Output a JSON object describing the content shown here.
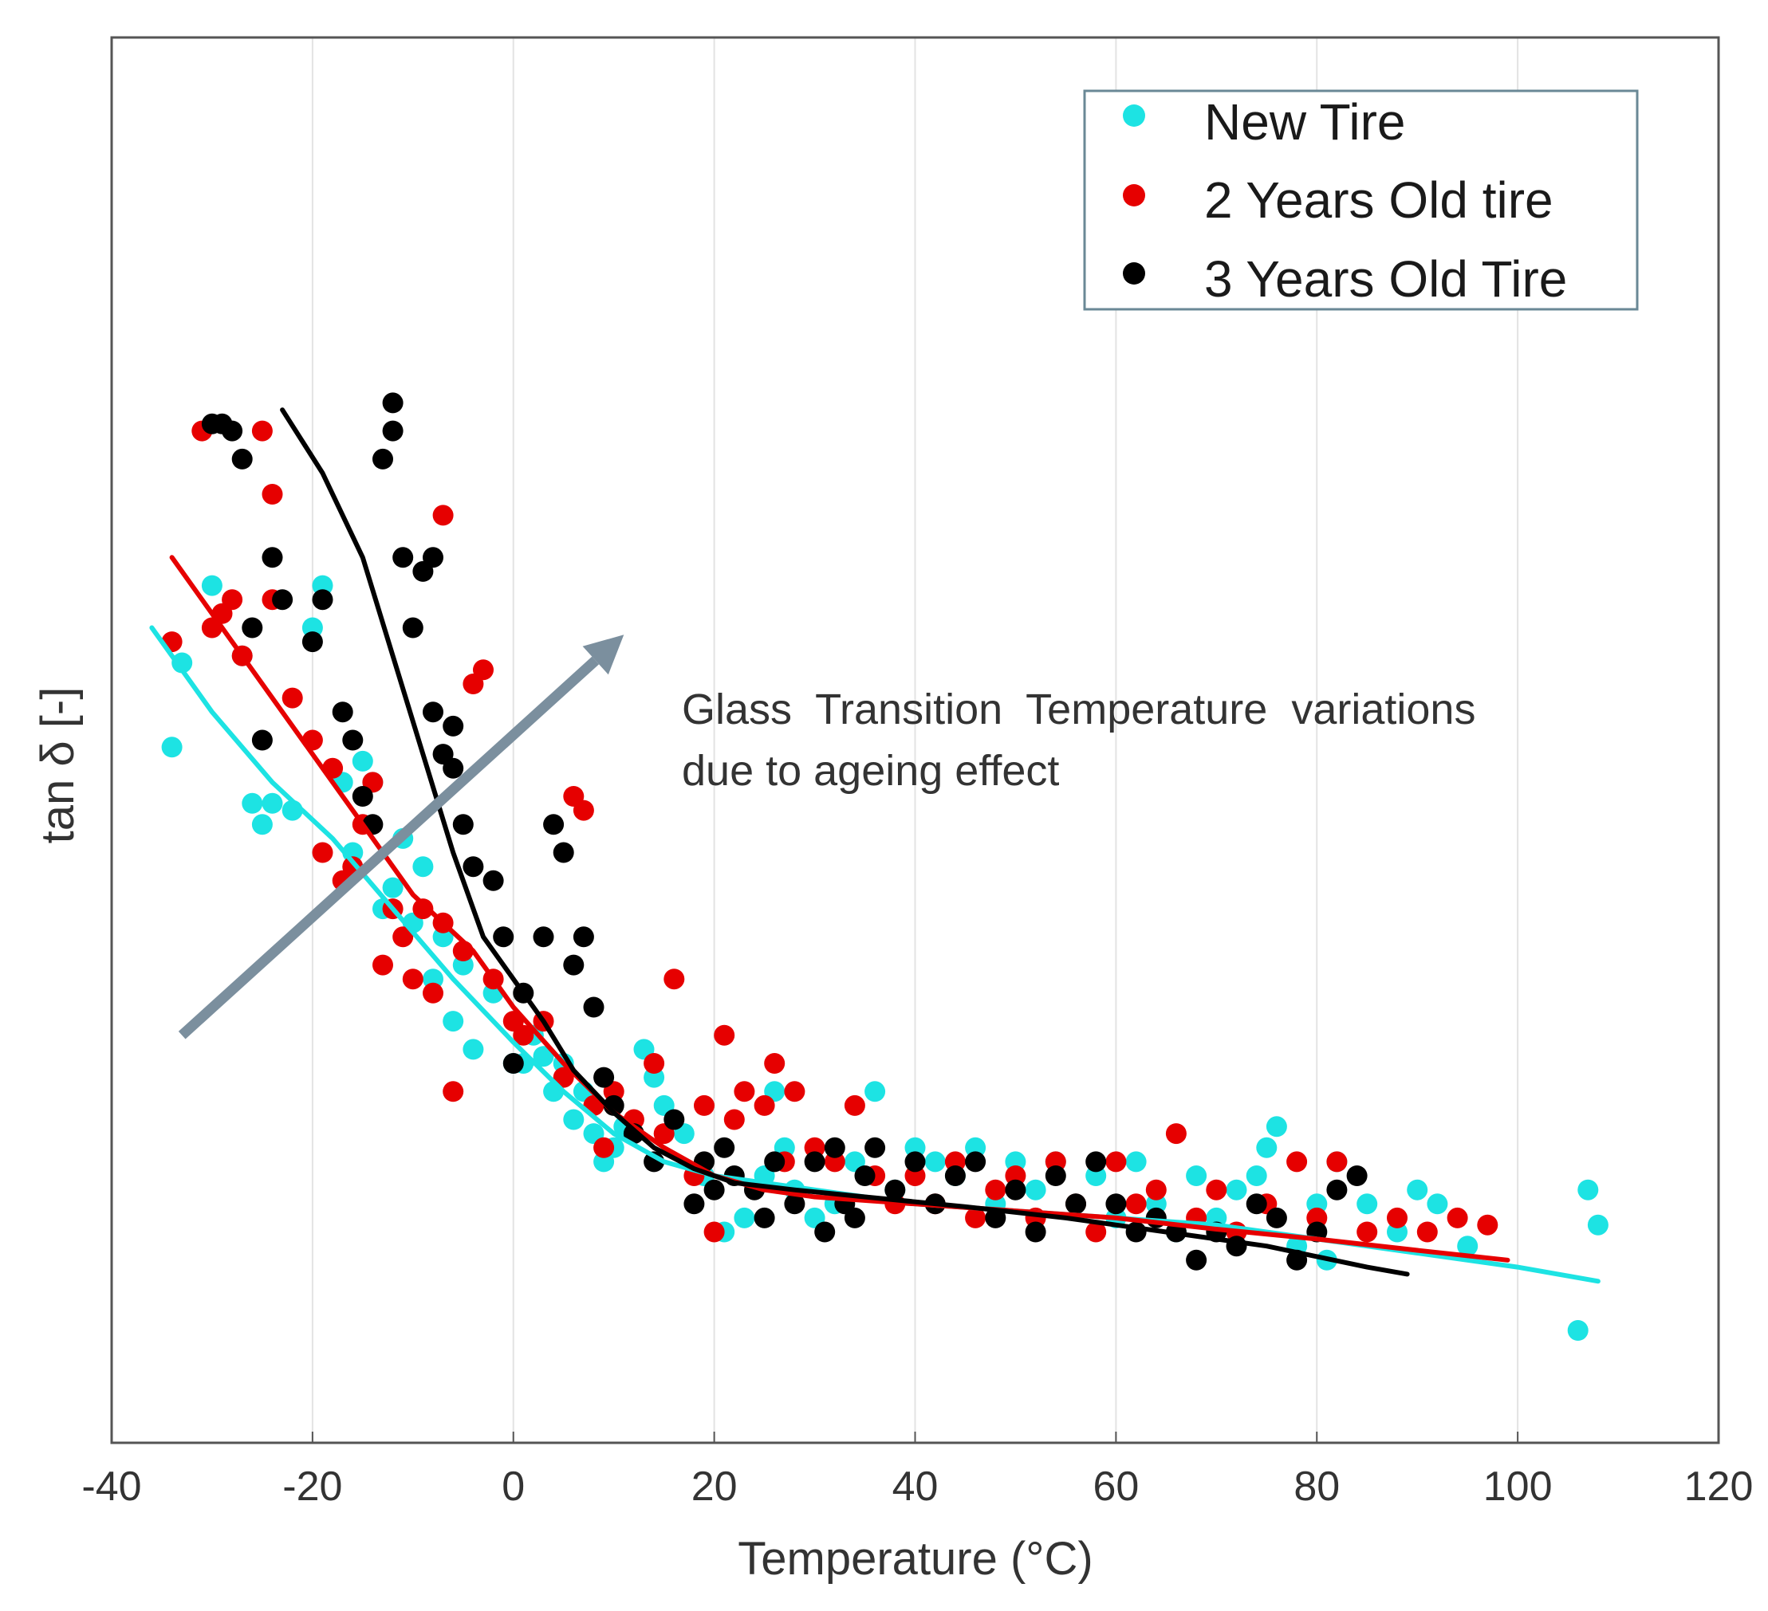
{
  "chart_data": {
    "type": "scatter",
    "title": "",
    "xlabel": "Temperature (°C)",
    "ylabel": "tan δ [-]",
    "xlim": [
      -40,
      120
    ],
    "ylim": [
      0,
      1
    ],
    "xticks": [
      -40,
      -20,
      0,
      20,
      40,
      60,
      80,
      100,
      120
    ],
    "xtick_labels": [
      "-40",
      "-20",
      "0",
      "20",
      "40",
      "60",
      "80",
      "100",
      "120"
    ],
    "yticks_shown": false,
    "grid": "vertical",
    "legend_position": "top-right",
    "annotation": {
      "line1": "Glass  Transition  Temperature  variations",
      "line2": "due to ageing effect",
      "arrow_start": [
        -33,
        0.29
      ],
      "arrow_end": [
        11,
        0.575
      ]
    },
    "series": [
      {
        "name": "New Tire",
        "color": "#1de3e3",
        "points": [
          [
            -34,
            0.495
          ],
          [
            -33,
            0.555
          ],
          [
            -30,
            0.61
          ],
          [
            -27,
            0.56
          ],
          [
            -26,
            0.455
          ],
          [
            -25,
            0.44
          ],
          [
            -24,
            0.455
          ],
          [
            -22,
            0.45
          ],
          [
            -20,
            0.58
          ],
          [
            -19,
            0.61
          ],
          [
            -17,
            0.47
          ],
          [
            -16,
            0.42
          ],
          [
            -15,
            0.485
          ],
          [
            -14,
            0.47
          ],
          [
            -13,
            0.38
          ],
          [
            -12,
            0.395
          ],
          [
            -11,
            0.43
          ],
          [
            -10,
            0.37
          ],
          [
            -9,
            0.41
          ],
          [
            -8,
            0.33
          ],
          [
            -7,
            0.36
          ],
          [
            -6,
            0.3
          ],
          [
            -5,
            0.34
          ],
          [
            -4,
            0.28
          ],
          [
            -2,
            0.32
          ],
          [
            0,
            0.27
          ],
          [
            1,
            0.27
          ],
          [
            2,
            0.29
          ],
          [
            3,
            0.275
          ],
          [
            4,
            0.25
          ],
          [
            5,
            0.27
          ],
          [
            6,
            0.23
          ],
          [
            7,
            0.25
          ],
          [
            8,
            0.22
          ],
          [
            9,
            0.2
          ],
          [
            10,
            0.21
          ],
          [
            11,
            0.225
          ],
          [
            13,
            0.28
          ],
          [
            14,
            0.26
          ],
          [
            15,
            0.24
          ],
          [
            17,
            0.22
          ],
          [
            19,
            0.19
          ],
          [
            21,
            0.15
          ],
          [
            23,
            0.16
          ],
          [
            25,
            0.19
          ],
          [
            26,
            0.25
          ],
          [
            27,
            0.21
          ],
          [
            28,
            0.18
          ],
          [
            30,
            0.16
          ],
          [
            32,
            0.17
          ],
          [
            34,
            0.2
          ],
          [
            36,
            0.25
          ],
          [
            38,
            0.18
          ],
          [
            40,
            0.21
          ],
          [
            42,
            0.2
          ],
          [
            44,
            0.19
          ],
          [
            46,
            0.21
          ],
          [
            48,
            0.17
          ],
          [
            50,
            0.2
          ],
          [
            52,
            0.18
          ],
          [
            54,
            0.2
          ],
          [
            56,
            0.17
          ],
          [
            58,
            0.19
          ],
          [
            60,
            0.16
          ],
          [
            62,
            0.2
          ],
          [
            64,
            0.17
          ],
          [
            66,
            0.15
          ],
          [
            68,
            0.19
          ],
          [
            70,
            0.16
          ],
          [
            72,
            0.18
          ],
          [
            74,
            0.19
          ],
          [
            75,
            0.21
          ],
          [
            76,
            0.225
          ],
          [
            78,
            0.14
          ],
          [
            80,
            0.17
          ],
          [
            81,
            0.13
          ],
          [
            82,
            0.2
          ],
          [
            85,
            0.17
          ],
          [
            88,
            0.15
          ],
          [
            90,
            0.18
          ],
          [
            92,
            0.17
          ],
          [
            95,
            0.14
          ],
          [
            106,
            0.08
          ],
          [
            107,
            0.18
          ],
          [
            108,
            0.155
          ]
        ]
      },
      {
        "name": "2 Years Old tire",
        "color": "#e60000",
        "points": [
          [
            -34,
            0.57
          ],
          [
            -31,
            0.72
          ],
          [
            -30,
            0.58
          ],
          [
            -29,
            0.59
          ],
          [
            -28,
            0.6
          ],
          [
            -27,
            0.56
          ],
          [
            -25,
            0.72
          ],
          [
            -24,
            0.675
          ],
          [
            -24,
            0.6
          ],
          [
            -22,
            0.53
          ],
          [
            -20,
            0.5
          ],
          [
            -19,
            0.42
          ],
          [
            -18,
            0.48
          ],
          [
            -17,
            0.4
          ],
          [
            -16,
            0.41
          ],
          [
            -15,
            0.44
          ],
          [
            -14,
            0.47
          ],
          [
            -13,
            0.34
          ],
          [
            -12,
            0.38
          ],
          [
            -11,
            0.36
          ],
          [
            -10,
            0.33
          ],
          [
            -9,
            0.38
          ],
          [
            -8,
            0.32
          ],
          [
            -7,
            0.37
          ],
          [
            -7,
            0.66
          ],
          [
            -6,
            0.25
          ],
          [
            -5,
            0.35
          ],
          [
            -4,
            0.54
          ],
          [
            -3,
            0.55
          ],
          [
            -2,
            0.33
          ],
          [
            0,
            0.3
          ],
          [
            1,
            0.29
          ],
          [
            3,
            0.3
          ],
          [
            5,
            0.26
          ],
          [
            6,
            0.46
          ],
          [
            7,
            0.45
          ],
          [
            8,
            0.24
          ],
          [
            9,
            0.21
          ],
          [
            10,
            0.25
          ],
          [
            12,
            0.23
          ],
          [
            14,
            0.27
          ],
          [
            15,
            0.22
          ],
          [
            16,
            0.33
          ],
          [
            18,
            0.19
          ],
          [
            19,
            0.24
          ],
          [
            20,
            0.15
          ],
          [
            21,
            0.29
          ],
          [
            22,
            0.23
          ],
          [
            23,
            0.25
          ],
          [
            25,
            0.24
          ],
          [
            26,
            0.27
          ],
          [
            27,
            0.2
          ],
          [
            28,
            0.25
          ],
          [
            30,
            0.21
          ],
          [
            32,
            0.2
          ],
          [
            34,
            0.24
          ],
          [
            36,
            0.19
          ],
          [
            38,
            0.17
          ],
          [
            40,
            0.19
          ],
          [
            42,
            0.17
          ],
          [
            44,
            0.2
          ],
          [
            46,
            0.16
          ],
          [
            48,
            0.18
          ],
          [
            50,
            0.19
          ],
          [
            52,
            0.16
          ],
          [
            54,
            0.2
          ],
          [
            56,
            0.17
          ],
          [
            58,
            0.15
          ],
          [
            60,
            0.2
          ],
          [
            62,
            0.17
          ],
          [
            64,
            0.18
          ],
          [
            66,
            0.22
          ],
          [
            68,
            0.16
          ],
          [
            70,
            0.18
          ],
          [
            72,
            0.15
          ],
          [
            75,
            0.17
          ],
          [
            78,
            0.2
          ],
          [
            80,
            0.16
          ],
          [
            82,
            0.2
          ],
          [
            85,
            0.15
          ],
          [
            88,
            0.16
          ],
          [
            91,
            0.15
          ],
          [
            94,
            0.16
          ],
          [
            97,
            0.155
          ]
        ]
      },
      {
        "name": "3 Years Old Tire",
        "color": "#000000",
        "points": [
          [
            -30,
            0.725
          ],
          [
            -29,
            0.725
          ],
          [
            -28,
            0.72
          ],
          [
            -27,
            0.7
          ],
          [
            -26,
            0.58
          ],
          [
            -25,
            0.5
          ],
          [
            -24,
            0.63
          ],
          [
            -23,
            0.6
          ],
          [
            -20,
            0.57
          ],
          [
            -19,
            0.6
          ],
          [
            -17,
            0.52
          ],
          [
            -16,
            0.5
          ],
          [
            -15,
            0.46
          ],
          [
            -14,
            0.44
          ],
          [
            -13,
            0.7
          ],
          [
            -12,
            0.74
          ],
          [
            -12,
            0.72
          ],
          [
            -11,
            0.63
          ],
          [
            -10,
            0.58
          ],
          [
            -9,
            0.62
          ],
          [
            -8,
            0.63
          ],
          [
            -8,
            0.52
          ],
          [
            -7,
            0.49
          ],
          [
            -6,
            0.51
          ],
          [
            -6,
            0.48
          ],
          [
            -5,
            0.44
          ],
          [
            -4,
            0.41
          ],
          [
            -2,
            0.4
          ],
          [
            -1,
            0.36
          ],
          [
            0,
            0.27
          ],
          [
            1,
            0.32
          ],
          [
            3,
            0.36
          ],
          [
            4,
            0.44
          ],
          [
            5,
            0.42
          ],
          [
            6,
            0.34
          ],
          [
            7,
            0.36
          ],
          [
            8,
            0.31
          ],
          [
            9,
            0.26
          ],
          [
            10,
            0.24
          ],
          [
            12,
            0.22
          ],
          [
            14,
            0.2
          ],
          [
            16,
            0.23
          ],
          [
            18,
            0.17
          ],
          [
            19,
            0.2
          ],
          [
            20,
            0.18
          ],
          [
            21,
            0.21
          ],
          [
            22,
            0.19
          ],
          [
            24,
            0.18
          ],
          [
            25,
            0.16
          ],
          [
            26,
            0.2
          ],
          [
            28,
            0.17
          ],
          [
            30,
            0.2
          ],
          [
            31,
            0.15
          ],
          [
            32,
            0.21
          ],
          [
            33,
            0.17
          ],
          [
            34,
            0.16
          ],
          [
            35,
            0.19
          ],
          [
            36,
            0.21
          ],
          [
            38,
            0.18
          ],
          [
            40,
            0.2
          ],
          [
            42,
            0.17
          ],
          [
            44,
            0.19
          ],
          [
            46,
            0.2
          ],
          [
            48,
            0.16
          ],
          [
            50,
            0.18
          ],
          [
            52,
            0.15
          ],
          [
            54,
            0.19
          ],
          [
            56,
            0.17
          ],
          [
            58,
            0.2
          ],
          [
            60,
            0.17
          ],
          [
            62,
            0.15
          ],
          [
            64,
            0.16
          ],
          [
            66,
            0.15
          ],
          [
            68,
            0.13
          ],
          [
            70,
            0.15
          ],
          [
            72,
            0.14
          ],
          [
            74,
            0.17
          ],
          [
            76,
            0.16
          ],
          [
            78,
            0.13
          ],
          [
            80,
            0.15
          ],
          [
            82,
            0.18
          ],
          [
            84,
            0.19
          ]
        ]
      }
    ],
    "fits": [
      {
        "name": "New Tire fit",
        "color": "#1de3e3",
        "points": [
          [
            -36,
            0.58
          ],
          [
            -30,
            0.52
          ],
          [
            -24,
            0.47
          ],
          [
            -18,
            0.43
          ],
          [
            -12,
            0.38
          ],
          [
            -6,
            0.33
          ],
          [
            0,
            0.285
          ],
          [
            5,
            0.25
          ],
          [
            10,
            0.22
          ],
          [
            15,
            0.2
          ],
          [
            20,
            0.19
          ],
          [
            25,
            0.185
          ],
          [
            30,
            0.18
          ],
          [
            40,
            0.17
          ],
          [
            50,
            0.165
          ],
          [
            60,
            0.16
          ],
          [
            70,
            0.155
          ],
          [
            80,
            0.145
          ],
          [
            90,
            0.135
          ],
          [
            100,
            0.125
          ],
          [
            108,
            0.115
          ]
        ]
      },
      {
        "name": "2 Years Old tire fit",
        "color": "#e60000",
        "points": [
          [
            -34,
            0.63
          ],
          [
            -28,
            0.57
          ],
          [
            -22,
            0.51
          ],
          [
            -16,
            0.45
          ],
          [
            -10,
            0.39
          ],
          [
            -4,
            0.35
          ],
          [
            0,
            0.31
          ],
          [
            5,
            0.27
          ],
          [
            10,
            0.235
          ],
          [
            15,
            0.21
          ],
          [
            20,
            0.19
          ],
          [
            25,
            0.18
          ],
          [
            30,
            0.175
          ],
          [
            40,
            0.17
          ],
          [
            50,
            0.165
          ],
          [
            60,
            0.16
          ],
          [
            70,
            0.152
          ],
          [
            80,
            0.145
          ],
          [
            90,
            0.137
          ],
          [
            99,
            0.13
          ]
        ]
      },
      {
        "name": "3 Years Old Tire fit",
        "color": "#000000",
        "points": [
          [
            -23,
            0.735
          ],
          [
            -19,
            0.69
          ],
          [
            -15,
            0.63
          ],
          [
            -12,
            0.56
          ],
          [
            -9,
            0.49
          ],
          [
            -6,
            0.42
          ],
          [
            -3,
            0.36
          ],
          [
            0,
            0.33
          ],
          [
            3,
            0.3
          ],
          [
            6,
            0.265
          ],
          [
            10,
            0.235
          ],
          [
            14,
            0.21
          ],
          [
            18,
            0.195
          ],
          [
            22,
            0.185
          ],
          [
            28,
            0.18
          ],
          [
            35,
            0.175
          ],
          [
            45,
            0.168
          ],
          [
            55,
            0.16
          ],
          [
            65,
            0.15
          ],
          [
            75,
            0.14
          ],
          [
            85,
            0.125
          ],
          [
            89,
            0.12
          ]
        ]
      }
    ]
  }
}
